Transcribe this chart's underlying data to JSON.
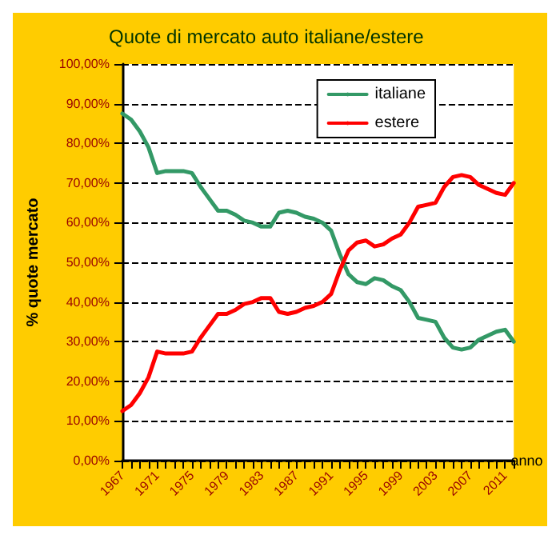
{
  "chart_data": {
    "type": "line",
    "title": "Quote di mercato auto italiane/estere",
    "xlabel": "anno",
    "ylabel": "% quote mercato",
    "categories": [
      "1967",
      null,
      null,
      null,
      "1971",
      null,
      null,
      null,
      "1975",
      null,
      null,
      null,
      "1979",
      null,
      null,
      null,
      "1983",
      null,
      null,
      null,
      "1987",
      null,
      null,
      null,
      "1991",
      null,
      null,
      null,
      "1995",
      null,
      null,
      null,
      "1999",
      null,
      null,
      null,
      "2003",
      null,
      null,
      null,
      "2007",
      null,
      null,
      null,
      "2011",
      null
    ],
    "series": [
      {
        "name": "italiane",
        "color": "#339966",
        "values": [
          87.5,
          86,
          83,
          79,
          72.5,
          73,
          73,
          73,
          72.5,
          69,
          66,
          63,
          63,
          62,
          60.5,
          60,
          59,
          59,
          62.5,
          63,
          62.5,
          61.5,
          61,
          60,
          58,
          52,
          47,
          45,
          44.5,
          46,
          45.5,
          44,
          43,
          40,
          36,
          35.5,
          35,
          31,
          28.5,
          28,
          28.5,
          30.5,
          31.5,
          32.5,
          33,
          30
        ]
      },
      {
        "name": "estere",
        "color": "#ff0000",
        "values": [
          12.5,
          14,
          17,
          21,
          27.5,
          27,
          27,
          27,
          27.5,
          31,
          34,
          37,
          37,
          38,
          39.5,
          40,
          41,
          41,
          37.5,
          37,
          37.5,
          38.5,
          39,
          40,
          42,
          48,
          53,
          55,
          55.5,
          54,
          54.5,
          56,
          57,
          60,
          64,
          64.5,
          65,
          69,
          71.5,
          72,
          71.5,
          69.5,
          68.5,
          67.5,
          67,
          70
        ]
      }
    ],
    "ylim": [
      0,
      100
    ],
    "yticks": [
      {
        "value": 0,
        "label": "0,00%"
      },
      {
        "value": 10,
        "label": "10,00%"
      },
      {
        "value": 20,
        "label": "20,00%"
      },
      {
        "value": 30,
        "label": "30,00%"
      },
      {
        "value": 40,
        "label": "40,00%"
      },
      {
        "value": 50,
        "label": "50,00%"
      },
      {
        "value": 60,
        "label": "60,00%"
      },
      {
        "value": 70,
        "label": "70,00%"
      },
      {
        "value": 80,
        "label": "80,00%"
      },
      {
        "value": 90,
        "label": "90,00%"
      },
      {
        "value": 100,
        "label": "100,00%"
      }
    ],
    "grid": "y",
    "legend": "top right",
    "marker": "none",
    "line_style": "solid"
  }
}
